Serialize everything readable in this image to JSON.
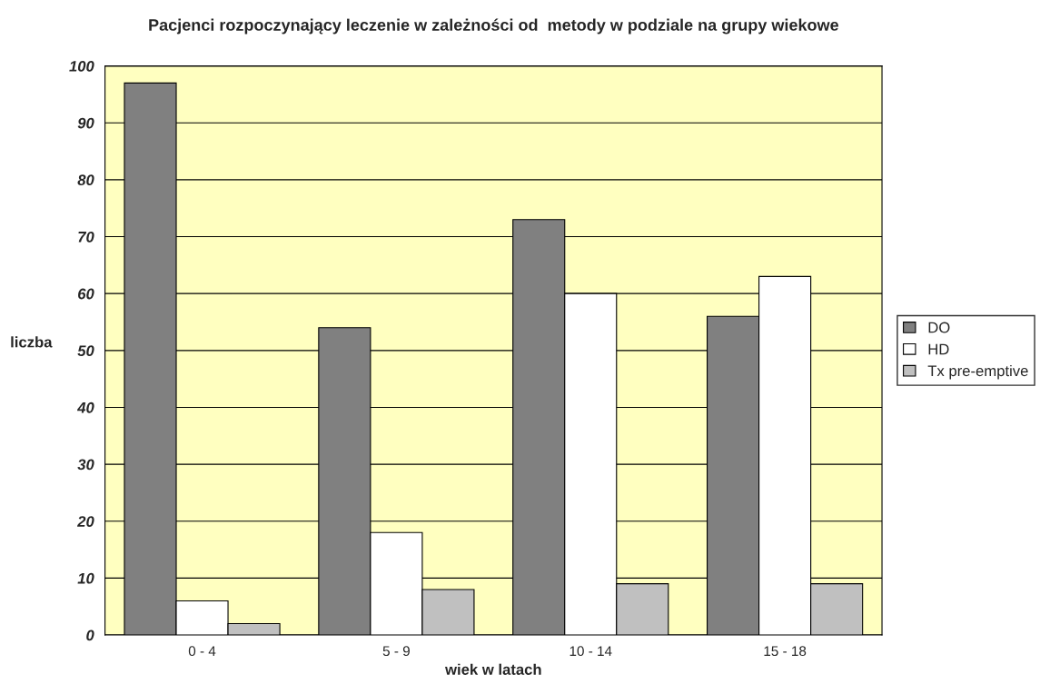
{
  "chart_data": {
    "type": "bar",
    "title": "Pacjenci rozpoczynający leczenie w zależności od  metody w podziale na grupy wiekowe",
    "xlabel": "wiek w latach",
    "ylabel": "liczba",
    "categories": [
      "0 - 4",
      "5 - 9",
      "10 - 14",
      "15 - 18"
    ],
    "series": [
      {
        "name": "DO",
        "color": "#808080",
        "values": [
          97,
          54,
          73,
          56
        ]
      },
      {
        "name": "HD",
        "color": "#ffffff",
        "values": [
          6,
          18,
          60,
          63
        ]
      },
      {
        "name": "Tx pre-emptive",
        "color": "#c0c0c0",
        "values": [
          2,
          8,
          9,
          9
        ]
      }
    ],
    "ylim": [
      0,
      100
    ],
    "yticks": [
      0,
      10,
      20,
      30,
      40,
      50,
      60,
      70,
      80,
      90,
      100
    ],
    "grid": "y",
    "legend": "right"
  }
}
